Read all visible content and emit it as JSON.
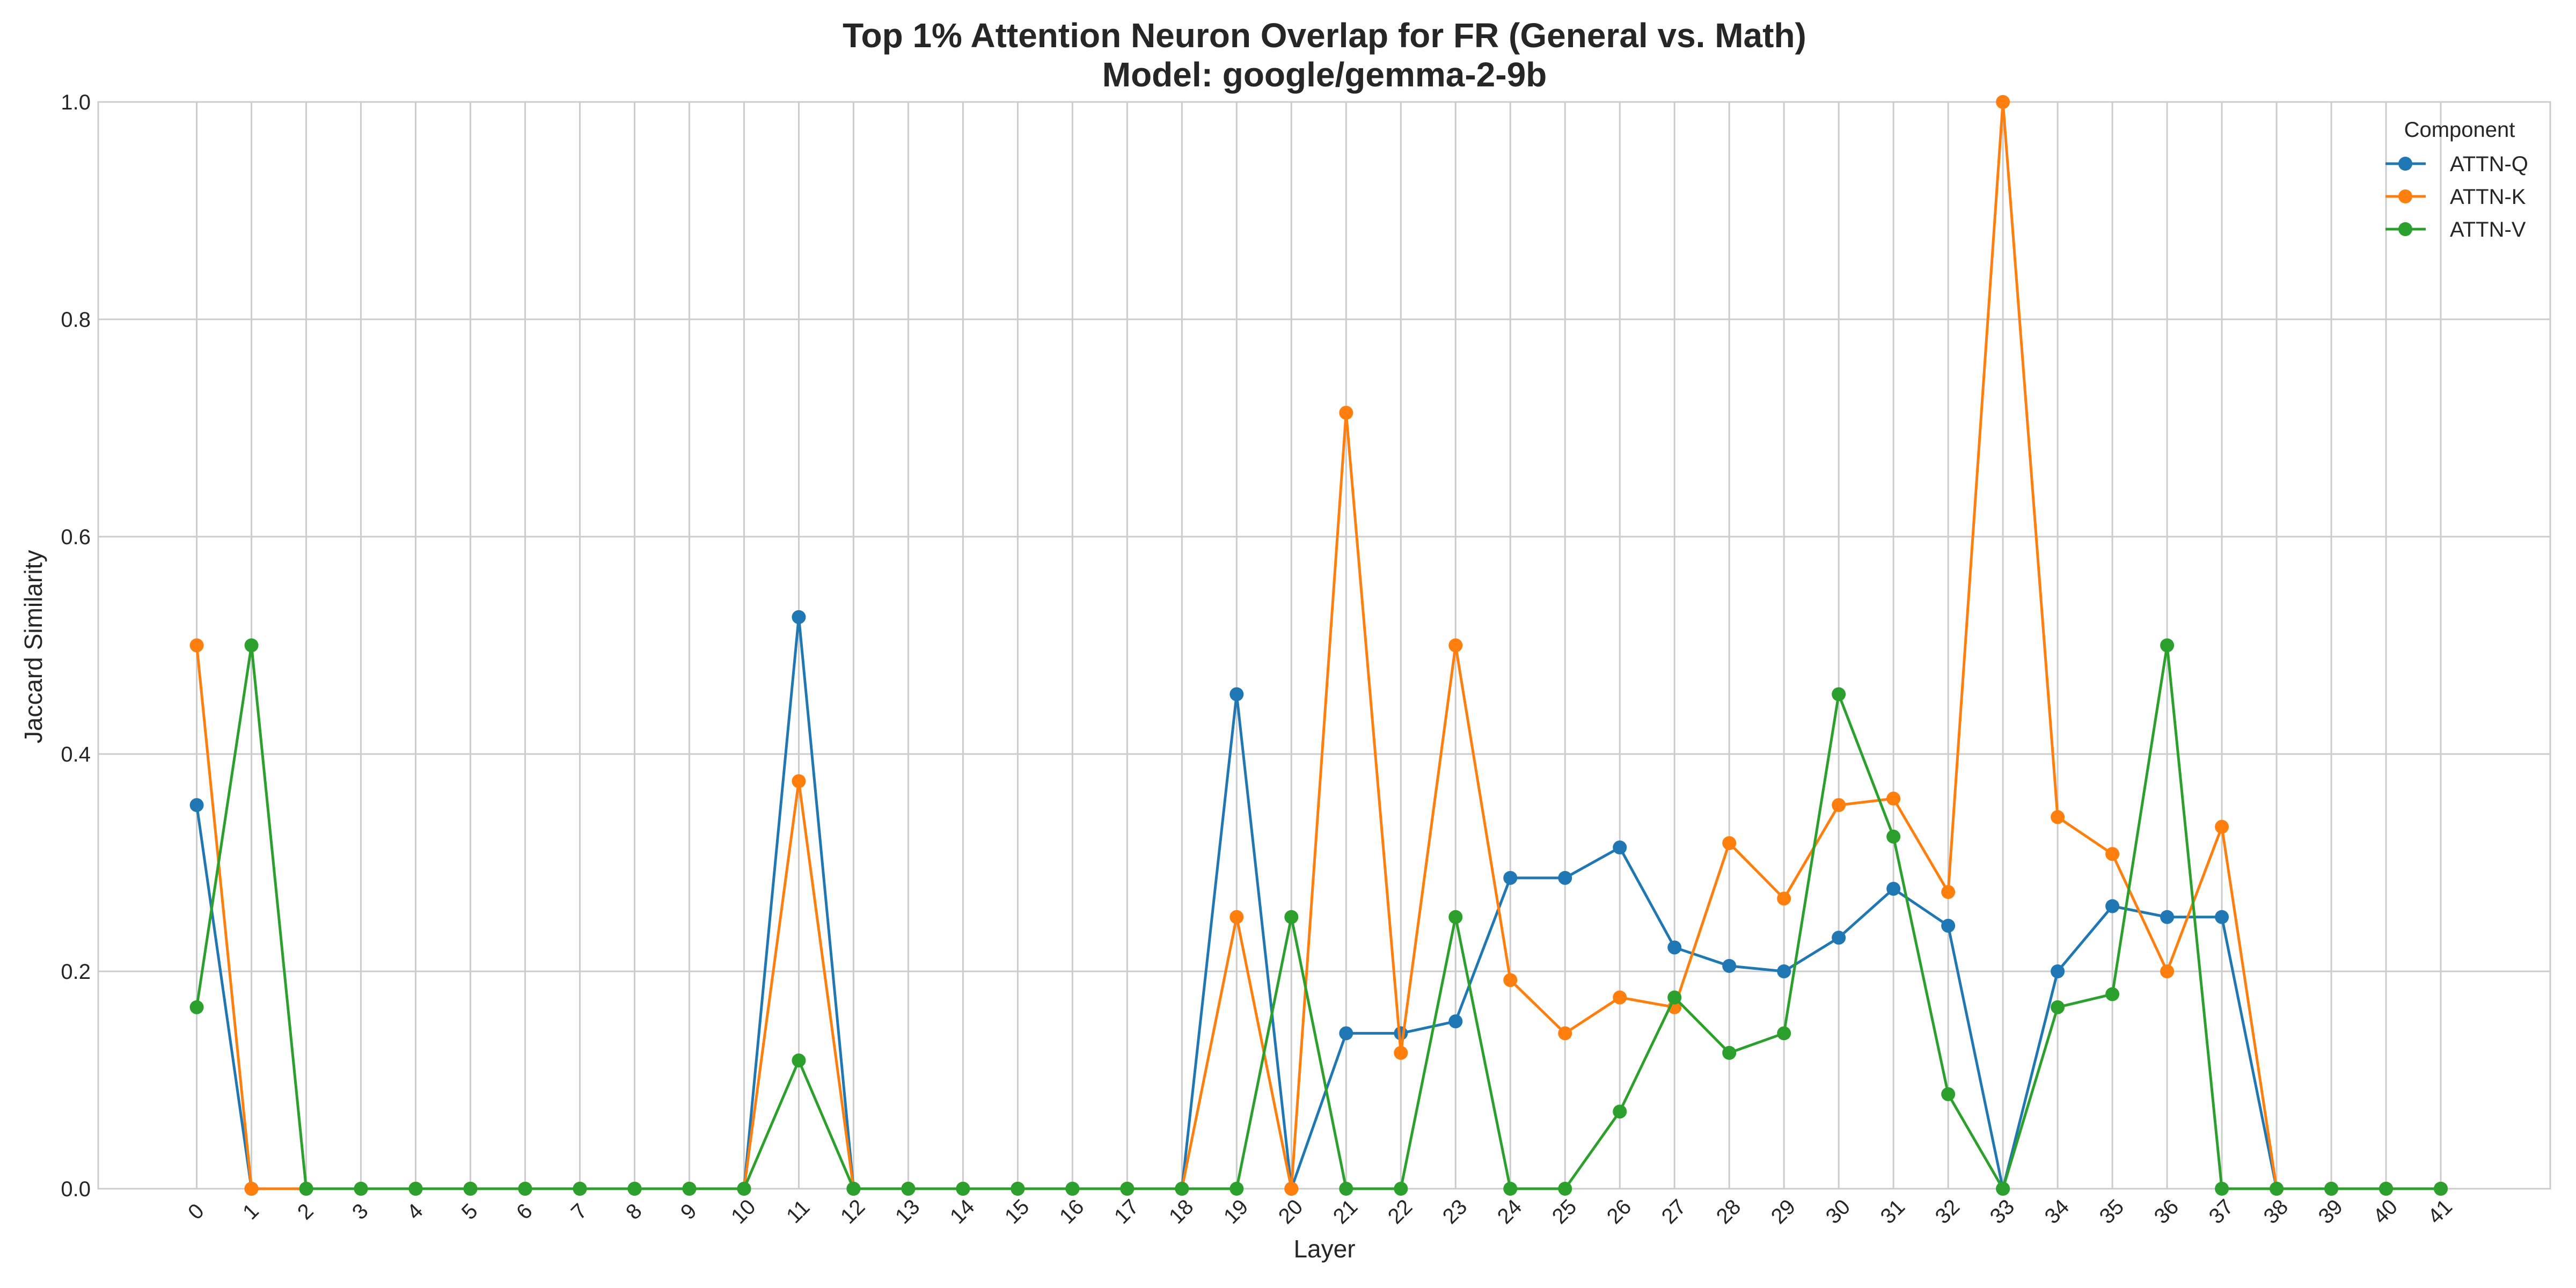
{
  "chart_data": {
    "type": "line",
    "title": "Top 1% Attention Neuron Overlap for FR (General vs. Math)",
    "subtitle": "Model: google/gemma-2-9b",
    "xlabel": "Layer",
    "ylabel": "Jaccard Similarity",
    "ylim": [
      0,
      1.0
    ],
    "yticks": [
      0.0,
      0.2,
      0.4,
      0.6,
      0.8,
      1.0
    ],
    "ytick_labels": [
      "0.0",
      "0.2",
      "0.4",
      "0.6",
      "0.8",
      "1.0"
    ],
    "x": [
      0,
      1,
      2,
      3,
      4,
      5,
      6,
      7,
      8,
      9,
      10,
      11,
      12,
      13,
      14,
      15,
      16,
      17,
      18,
      19,
      20,
      21,
      22,
      23,
      24,
      25,
      26,
      27,
      28,
      29,
      30,
      31,
      32,
      33,
      34,
      35,
      36,
      37,
      38,
      39,
      40,
      41
    ],
    "grid": true,
    "legend": {
      "title": "Component",
      "placement": "top-right"
    },
    "series": [
      {
        "name": "ATTN-Q",
        "color": "#1f77b4",
        "values": [
          0.353,
          0,
          0,
          0,
          0,
          0,
          0,
          0,
          0,
          0,
          0,
          0.526,
          0,
          0,
          0,
          0,
          0,
          0,
          0,
          0.455,
          0,
          0.143,
          0.143,
          0.154,
          0.286,
          0.286,
          0.314,
          0.222,
          0.205,
          0.2,
          0.231,
          0.276,
          0.242,
          0,
          0.2,
          0.26,
          0.25,
          0.25,
          0,
          0,
          0,
          0
        ]
      },
      {
        "name": "ATTN-K",
        "color": "#ff7f0e",
        "values": [
          0.5,
          0,
          0,
          0,
          0,
          0,
          0,
          0,
          0,
          0,
          0,
          0.375,
          0,
          0,
          0,
          0,
          0,
          0,
          0,
          0.25,
          0,
          0.714,
          0.125,
          0.5,
          0.192,
          0.143,
          0.176,
          0.167,
          0.318,
          0.267,
          0.353,
          0.359,
          0.273,
          1.0,
          0.342,
          0.308,
          0.2,
          0.333,
          0,
          0,
          0,
          0
        ]
      },
      {
        "name": "ATTN-V",
        "color": "#2ca02c",
        "values": [
          0.167,
          0.5,
          0,
          0,
          0,
          0,
          0,
          0,
          0,
          0,
          0,
          0.118,
          0,
          0,
          0,
          0,
          0,
          0,
          0,
          0,
          0.25,
          0,
          0,
          0.25,
          0,
          0,
          0.071,
          0.176,
          0.125,
          0.143,
          0.455,
          0.324,
          0.087,
          0,
          0.167,
          0.179,
          0.5,
          0,
          0,
          0,
          0,
          0
        ]
      }
    ]
  }
}
